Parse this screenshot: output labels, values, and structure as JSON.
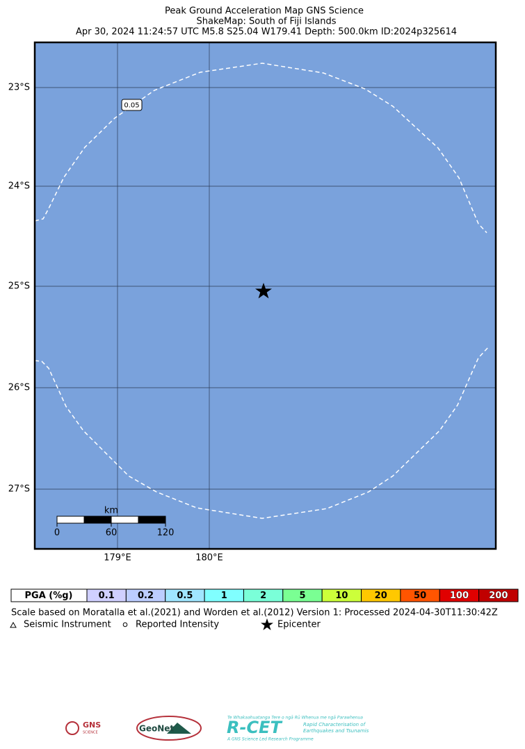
{
  "header": {
    "title": "Peak Ground Acceleration Map GNS Science",
    "subtitle": "ShakeMap: South of Fiji Islands",
    "event": "Apr 30, 2024 11:24:57 UTC M5.8 S25.04 W179.41 Depth: 500.0km ID:2024p325614"
  },
  "map": {
    "lat_labels": [
      "23°S",
      "24°S",
      "25°S",
      "26°S",
      "27°S"
    ],
    "lon_labels": [
      "179°E",
      "180°E"
    ],
    "contour_label": "0.05",
    "scale_bar": {
      "unit": "km",
      "labels": [
        "0",
        "60",
        "120"
      ]
    }
  },
  "legend": {
    "label": "PGA (%g)",
    "bins": [
      {
        "label": "0.1",
        "color": "#d0d0ff"
      },
      {
        "label": "0.2",
        "color": "#bccdff"
      },
      {
        "label": "0.5",
        "color": "#a0e6ff"
      },
      {
        "label": "1",
        "color": "#80ffff"
      },
      {
        "label": "2",
        "color": "#7affd8"
      },
      {
        "label": "5",
        "color": "#7aff93"
      },
      {
        "label": "10",
        "color": "#ccff3a"
      },
      {
        "label": "20",
        "color": "#ffc800"
      },
      {
        "label": "50",
        "color": "#ff5500"
      },
      {
        "label": "100",
        "color": "#e00000"
      },
      {
        "label": "200",
        "color": "#c00000"
      }
    ]
  },
  "footer": {
    "note": "Scale based on Moratalla et al.(2021) and Worden et al.(2012)   Version 1: Processed 2024-04-30T11:30:42Z",
    "symbols": [
      "Seismic Instrument",
      "Reported Intensity",
      "Epicenter"
    ]
  },
  "logos": {
    "gns": "GNS",
    "gns_sub": "SCIENCE",
    "geonet": "GeoNet",
    "rcet": "R-CET",
    "rcet_maori": "Te Whakaahuatanga Tere o ngā Rū Whenua me ngā Parawhenua",
    "rcet_desc1": "Rapid Characterisation of",
    "rcet_desc2": "Earthquakes and Tsunamis",
    "rcet_foot": "A GNS Science Led Research Programme"
  }
}
